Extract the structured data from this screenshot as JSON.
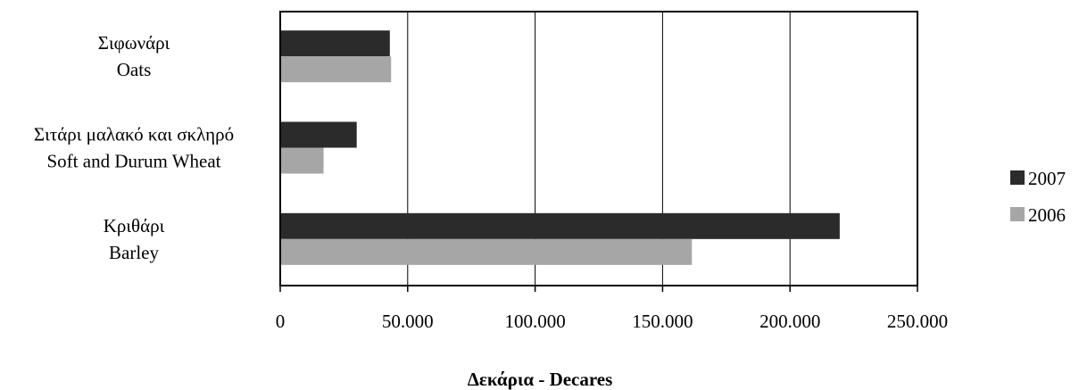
{
  "chart_data": {
    "type": "bar",
    "orientation": "horizontal",
    "categories": [
      [
        "Σιφωνάρι",
        "Oats"
      ],
      [
        "Σιτάρι μαλακό και σκληρό",
        "Soft and Durum Wheat"
      ],
      [
        "Κριθάρι",
        "Barley"
      ]
    ],
    "series": [
      {
        "name": "2007",
        "color": "#2b2b2b",
        "values": [
          43000,
          30000,
          219500
        ]
      },
      {
        "name": "2006",
        "color": "#a6a6a6",
        "values": [
          43500,
          17000,
          161500
        ]
      }
    ],
    "xlim": [
      0,
      250000
    ],
    "tick_values": [
      0,
      50000,
      100000,
      150000,
      200000,
      250000
    ],
    "tick_labels": [
      "0",
      "50.000",
      "100.000",
      "150.000",
      "200.000",
      "250.000"
    ],
    "xlabel": "Δεκάρια - Decares",
    "ylabel": "",
    "grid": true,
    "legend": {
      "position": "right",
      "order": [
        "2007",
        "2006"
      ]
    }
  }
}
